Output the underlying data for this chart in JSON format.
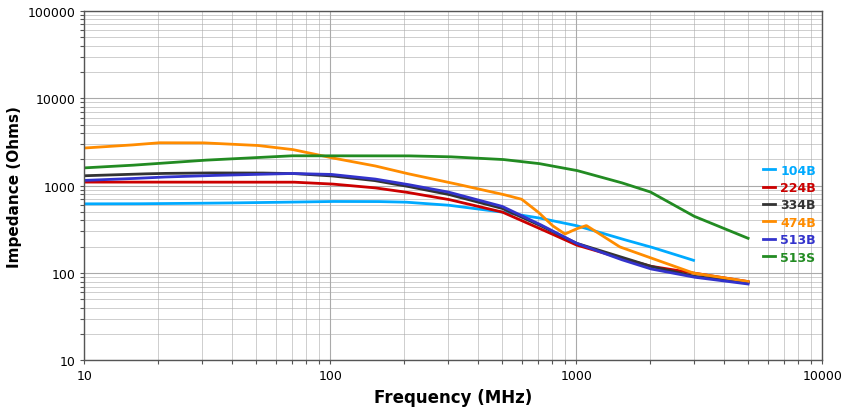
{
  "title": "",
  "xlabel": "Frequency (MHz)",
  "ylabel": "Impedance (Ohms)",
  "xlim": [
    10,
    10000
  ],
  "ylim": [
    10,
    100000
  ],
  "series": {
    "104B": {
      "color": "#00AAFF",
      "points": [
        [
          10,
          620
        ],
        [
          15,
          620
        ],
        [
          20,
          625
        ],
        [
          30,
          630
        ],
        [
          50,
          640
        ],
        [
          70,
          650
        ],
        [
          100,
          660
        ],
        [
          150,
          660
        ],
        [
          200,
          650
        ],
        [
          300,
          600
        ],
        [
          500,
          500
        ],
        [
          700,
          430
        ],
        [
          1000,
          350
        ],
        [
          1500,
          250
        ],
        [
          2000,
          200
        ],
        [
          3000,
          140
        ]
      ]
    },
    "224B": {
      "color": "#CC0000",
      "points": [
        [
          10,
          1100
        ],
        [
          15,
          1100
        ],
        [
          20,
          1100
        ],
        [
          30,
          1100
        ],
        [
          50,
          1100
        ],
        [
          70,
          1100
        ],
        [
          100,
          1050
        ],
        [
          150,
          950
        ],
        [
          200,
          850
        ],
        [
          300,
          700
        ],
        [
          500,
          500
        ],
        [
          700,
          330
        ],
        [
          1000,
          210
        ],
        [
          1500,
          150
        ],
        [
          2000,
          120
        ],
        [
          3000,
          100
        ],
        [
          5000,
          80
        ]
      ]
    },
    "334B": {
      "color": "#333333",
      "points": [
        [
          10,
          1300
        ],
        [
          15,
          1350
        ],
        [
          20,
          1380
        ],
        [
          30,
          1400
        ],
        [
          50,
          1400
        ],
        [
          70,
          1380
        ],
        [
          100,
          1300
        ],
        [
          150,
          1150
        ],
        [
          200,
          1000
        ],
        [
          300,
          800
        ],
        [
          500,
          550
        ],
        [
          700,
          360
        ],
        [
          1000,
          220
        ],
        [
          1500,
          155
        ],
        [
          2000,
          120
        ],
        [
          3000,
          92
        ],
        [
          5000,
          78
        ]
      ]
    },
    "474B": {
      "color": "#FF8C00",
      "points": [
        [
          10,
          2700
        ],
        [
          15,
          2900
        ],
        [
          20,
          3100
        ],
        [
          30,
          3100
        ],
        [
          50,
          2900
        ],
        [
          70,
          2600
        ],
        [
          100,
          2100
        ],
        [
          150,
          1700
        ],
        [
          200,
          1400
        ],
        [
          300,
          1100
        ],
        [
          500,
          800
        ],
        [
          600,
          700
        ],
        [
          700,
          500
        ],
        [
          800,
          350
        ],
        [
          900,
          280
        ],
        [
          1000,
          320
        ],
        [
          1100,
          350
        ],
        [
          1200,
          300
        ],
        [
          1500,
          200
        ],
        [
          2000,
          150
        ],
        [
          3000,
          100
        ],
        [
          5000,
          80
        ]
      ]
    },
    "513B": {
      "color": "#3333CC",
      "points": [
        [
          10,
          1150
        ],
        [
          15,
          1200
        ],
        [
          20,
          1250
        ],
        [
          30,
          1300
        ],
        [
          50,
          1350
        ],
        [
          70,
          1380
        ],
        [
          100,
          1350
        ],
        [
          150,
          1200
        ],
        [
          200,
          1050
        ],
        [
          300,
          850
        ],
        [
          500,
          580
        ],
        [
          700,
          370
        ],
        [
          1000,
          220
        ],
        [
          1500,
          145
        ],
        [
          2000,
          112
        ],
        [
          3000,
          90
        ],
        [
          5000,
          75
        ]
      ]
    },
    "513S": {
      "color": "#228B22",
      "points": [
        [
          10,
          1600
        ],
        [
          15,
          1700
        ],
        [
          20,
          1800
        ],
        [
          30,
          1950
        ],
        [
          50,
          2100
        ],
        [
          70,
          2200
        ],
        [
          100,
          2200
        ],
        [
          150,
          2200
        ],
        [
          200,
          2200
        ],
        [
          300,
          2150
        ],
        [
          500,
          2000
        ],
        [
          700,
          1800
        ],
        [
          1000,
          1500
        ],
        [
          1500,
          1100
        ],
        [
          2000,
          850
        ],
        [
          3000,
          450
        ],
        [
          5000,
          250
        ]
      ]
    }
  },
  "legend_order": [
    "104B",
    "224B",
    "334B",
    "474B",
    "513B",
    "513S"
  ],
  "legend_colors": {
    "104B": "#00AAFF",
    "224B": "#CC0000",
    "334B": "#333333",
    "474B": "#FF8C00",
    "513B": "#3333CC",
    "513S": "#228B22"
  },
  "background_color": "#FFFFFF",
  "grid_color": "#AAAAAA",
  "figsize": [
    8.49,
    4.14
  ],
  "dpi": 100
}
